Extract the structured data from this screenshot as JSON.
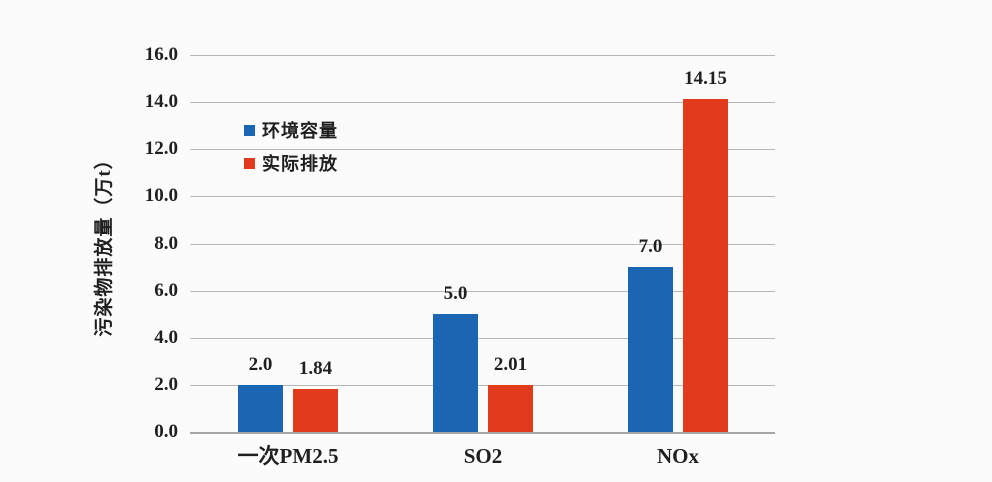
{
  "chart_data": {
    "type": "bar",
    "title": "",
    "xlabel": "",
    "ylabel": "污染物排放量（万t）",
    "categories": [
      "一次PM2.5",
      "SO2",
      "NOx"
    ],
    "series": [
      {
        "name": "环境容量",
        "color": "#1b66b3",
        "values": [
          2.0,
          5.0,
          7.0
        ],
        "labels": [
          "2.0",
          "5.0",
          "7.0"
        ]
      },
      {
        "name": "实际排放",
        "color": "#e23a1c",
        "values": [
          1.84,
          2.01,
          14.15
        ],
        "labels": [
          "1.84",
          "2.01",
          "14.15"
        ]
      }
    ],
    "ylim": [
      0,
      16
    ],
    "ytick_step": 2,
    "ytick_decimals": 1,
    "ytick_labels": [
      "0.0",
      "2.0",
      "4.0",
      "6.0",
      "8.0",
      "10.0",
      "12.0",
      "14.0",
      "16.0"
    ],
    "grid": true,
    "legend_position": "inside-top-left",
    "colors": {
      "gridline": "#b8b8b8",
      "axis_line": "#a6a6a6",
      "text": "#1f1f1f",
      "background": "#fcfbfb"
    }
  }
}
